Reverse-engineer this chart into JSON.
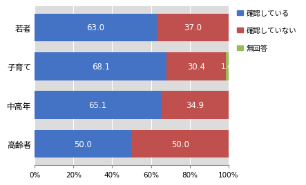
{
  "categories": [
    "若者",
    "子育て",
    "中高年",
    "高齢者"
  ],
  "confirmed": [
    63.0,
    68.1,
    65.1,
    50.0
  ],
  "not_confirmed": [
    37.0,
    30.4,
    34.9,
    50.0
  ],
  "no_answer": [
    0.0,
    1.4,
    0.0,
    0.0
  ],
  "color_confirmed": "#4472C4",
  "color_not_confirmed": "#C0504D",
  "color_no_answer": "#9BBB59",
  "legend_confirmed": "確認している",
  "legend_not_confirmed": "確認していない",
  "legend_no_answer": "無回答",
  "xlabel_ticks": [
    "0%",
    "20%",
    "40%",
    "60%",
    "80%",
    "100%"
  ],
  "xlabel_values": [
    0,
    20,
    40,
    60,
    80,
    100
  ],
  "bar_height": 0.72,
  "label_fontsize": 8.5,
  "legend_fontsize": 7.5,
  "tick_fontsize": 7.5,
  "ytick_fontsize": 8.5,
  "background_color": "#FFFFFF",
  "plot_bg_color": "#DCDCDC"
}
